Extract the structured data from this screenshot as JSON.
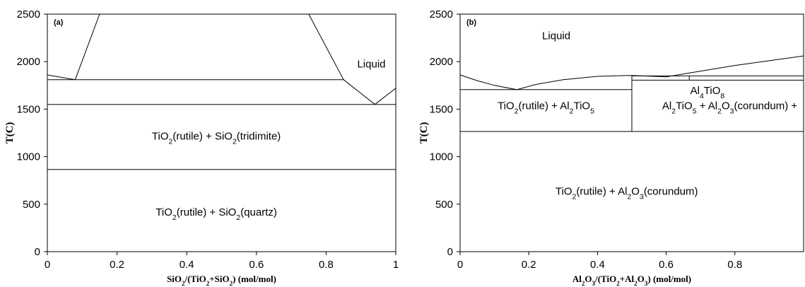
{
  "chart_data": [
    {
      "type": "line",
      "panel_label": "(a)",
      "xlabel_parts": [
        [
          "SiO",
          "n"
        ],
        [
          "2",
          "sub"
        ],
        [
          "/(TiO",
          "n"
        ],
        [
          "2",
          "sub"
        ],
        [
          "+SiO",
          "n"
        ],
        [
          "2",
          "sub"
        ],
        [
          ") (mol/mol)",
          "n"
        ]
      ],
      "ylabel": "T(C)",
      "xlim": [
        0,
        1
      ],
      "ylim": [
        0,
        2500
      ],
      "x_ticks": [
        "0",
        "0.2",
        "0.4",
        "0.6",
        "0.8",
        "1"
      ],
      "y_ticks": [
        "0",
        "500",
        "1000",
        "1500",
        "2000",
        "2500"
      ],
      "grid": false,
      "boundaries": [
        {
          "name": "liquidus-left",
          "points": [
            [
              0,
              1860
            ],
            [
              0.08,
              1810
            ]
          ]
        },
        {
          "name": "miscibility-gap-left",
          "points": [
            [
              0.08,
              1810
            ],
            [
              0.15,
              2500
            ]
          ]
        },
        {
          "name": "miscibility-gap-right",
          "points": [
            [
              0.75,
              2500
            ],
            [
              0.85,
              1810
            ]
          ]
        },
        {
          "name": "liquidus-right-falling",
          "points": [
            [
              0.85,
              1810
            ],
            [
              0.94,
              1550
            ]
          ]
        },
        {
          "name": "liquidus-right-rising",
          "points": [
            [
              0.94,
              1550
            ],
            [
              1,
              1720
            ]
          ]
        },
        {
          "name": "monotectic-line",
          "points": [
            [
              0,
              1810
            ],
            [
              0.85,
              1810
            ]
          ]
        },
        {
          "name": "eutectic-line",
          "points": [
            [
              0,
              1550
            ],
            [
              1,
              1550
            ]
          ]
        },
        {
          "name": "quartz-tridymite-line",
          "points": [
            [
              0,
              865
            ],
            [
              1,
              865
            ]
          ]
        }
      ],
      "annotations": [
        {
          "id": "liquid",
          "parts": [
            [
              "Liquid",
              "n"
            ]
          ],
          "x": 0.93,
          "y": 1940
        },
        {
          "id": "tridimite",
          "parts": [
            [
              "TiO",
              "n"
            ],
            [
              "2",
              "sub"
            ],
            [
              "(rutile) +  SiO",
              "n"
            ],
            [
              "2",
              "sub"
            ],
            [
              "(tridimite)",
              "n"
            ]
          ],
          "x": 0.485,
          "y": 1180
        },
        {
          "id": "quartz",
          "parts": [
            [
              "TiO",
              "n"
            ],
            [
              "2",
              "sub"
            ],
            [
              "(rutile) +  SiO",
              "n"
            ],
            [
              "2",
              "sub"
            ],
            [
              "(quartz)",
              "n"
            ]
          ],
          "x": 0.485,
          "y": 380
        }
      ]
    },
    {
      "type": "line",
      "panel_label": "(b)",
      "xlabel_parts": [
        [
          "Al",
          "n"
        ],
        [
          "2",
          "sub"
        ],
        [
          "O",
          "n"
        ],
        [
          "3",
          "sub"
        ],
        [
          "/(TiO",
          "n"
        ],
        [
          "2",
          "sub"
        ],
        [
          "+Al",
          "n"
        ],
        [
          "2",
          "sub"
        ],
        [
          "O",
          "n"
        ],
        [
          "3",
          "sub"
        ],
        [
          ") (mol/mol)",
          "n"
        ]
      ],
      "ylabel": "T(C)",
      "xlim": [
        0,
        1
      ],
      "ylim": [
        0,
        2500
      ],
      "x_ticks": [
        "0",
        "0.2",
        "0.4",
        "0.6",
        "0.8"
      ],
      "y_ticks": [
        "0",
        "500",
        "1000",
        "1500",
        "2000",
        "2500"
      ],
      "grid": false,
      "boundaries": [
        {
          "name": "liquidus",
          "points": [
            [
              0,
              1860
            ],
            [
              0.05,
              1800
            ],
            [
              0.1,
              1750
            ],
            [
              0.165,
              1705
            ],
            [
              0.22,
              1760
            ],
            [
              0.3,
              1810
            ],
            [
              0.4,
              1845
            ],
            [
              0.5,
              1855
            ],
            [
              0.6,
              1840
            ],
            [
              0.7,
              1900
            ],
            [
              0.8,
              1960
            ],
            [
              0.9,
              2010
            ],
            [
              1,
              2060
            ]
          ]
        },
        {
          "name": "eutectic-line-left",
          "points": [
            [
              0,
              1705
            ],
            [
              0.5,
              1705
            ]
          ]
        },
        {
          "name": "al2tio5-composition-line",
          "points": [
            [
              0.5,
              1265
            ],
            [
              0.5,
              1855
            ]
          ]
        },
        {
          "name": "al2tio5-decomposition-line",
          "points": [
            [
              0,
              1265
            ],
            [
              1,
              1265
            ]
          ]
        },
        {
          "name": "upper-line",
          "points": [
            [
              0.5,
              1850
            ],
            [
              1,
              1850
            ]
          ]
        },
        {
          "name": "lower-line",
          "points": [
            [
              0.5,
              1805
            ],
            [
              1,
              1805
            ]
          ]
        },
        {
          "name": "al4tio8-composition-line",
          "points": [
            [
              0.667,
              1805
            ],
            [
              0.667,
              1850
            ]
          ]
        }
      ],
      "annotations": [
        {
          "id": "liquid",
          "parts": [
            [
              "Liquid",
              "n"
            ]
          ],
          "x": 0.28,
          "y": 2235
        },
        {
          "id": "al4tio8",
          "parts": [
            [
              "Al",
              "n"
            ],
            [
              "4",
              "sub"
            ],
            [
              "TiO",
              "n"
            ],
            [
              "8",
              "sub"
            ]
          ],
          "x": 0.72,
          "y": 1660
        },
        {
          "id": "rutile-al2tio5",
          "parts": [
            [
              "TiO",
              "n"
            ],
            [
              "2",
              "sub"
            ],
            [
              "(rutile) + Al",
              "n"
            ],
            [
              "2",
              "sub"
            ],
            [
              "TiO",
              "n"
            ],
            [
              "5",
              "sub"
            ]
          ],
          "x": 0.25,
          "y": 1500
        },
        {
          "id": "al2tio5-corundum",
          "parts": [
            [
              "Al",
              "n"
            ],
            [
              "2",
              "sub"
            ],
            [
              "TiO",
              "n"
            ],
            [
              "5",
              "sub"
            ],
            [
              " + Al",
              "n"
            ],
            [
              "2",
              "sub"
            ],
            [
              "O",
              "n"
            ],
            [
              "3",
              "sub"
            ],
            [
              "(corundum)  +",
              "n"
            ]
          ],
          "x": 0.785,
          "y": 1500
        },
        {
          "id": "rutile-corundum",
          "parts": [
            [
              "TiO",
              "n"
            ],
            [
              "2",
              "sub"
            ],
            [
              "(rutile) + Al",
              "n"
            ],
            [
              "2",
              "sub"
            ],
            [
              "O",
              "n"
            ],
            [
              "3",
              "sub"
            ],
            [
              "(corundum)",
              "n"
            ]
          ],
          "x": 0.485,
          "y": 600
        }
      ]
    }
  ]
}
